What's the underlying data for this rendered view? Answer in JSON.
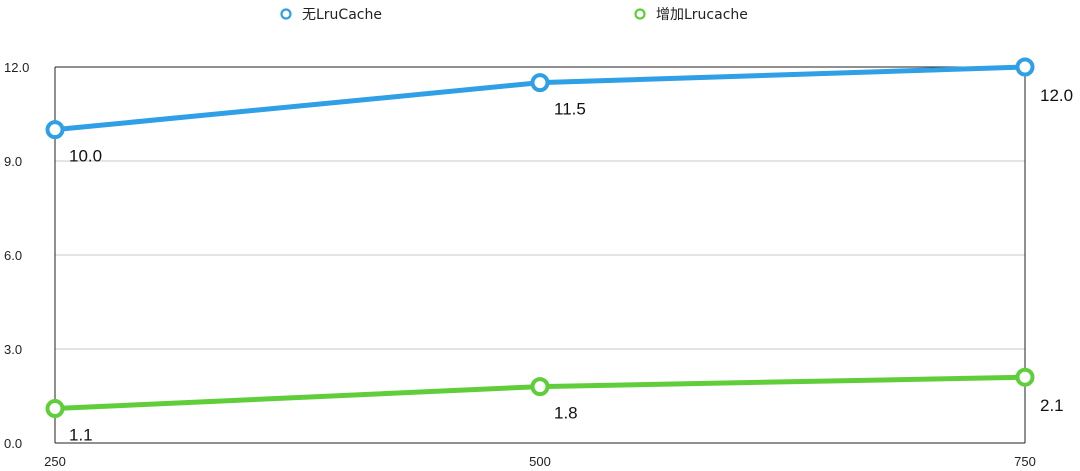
{
  "chart_data": {
    "type": "line",
    "x": [
      "250",
      "500",
      "750"
    ],
    "ylim": [
      0,
      12
    ],
    "y_ticks": [
      "0.0",
      "3.0",
      "6.0",
      "9.0",
      "12.0"
    ],
    "grid": "horizontal",
    "legend_position": "top",
    "series": [
      {
        "name": "无LruCache",
        "values": [
          10.0,
          11.5,
          12.0
        ],
        "labels": [
          "10.0",
          "11.5",
          "12.0"
        ],
        "color": "#2f9fe6"
      },
      {
        "name": "增加Lrucache",
        "values": [
          1.1,
          1.8,
          2.1
        ],
        "labels": [
          "1.1",
          "1.8",
          "2.1"
        ],
        "color": "#5fce3a"
      }
    ]
  }
}
